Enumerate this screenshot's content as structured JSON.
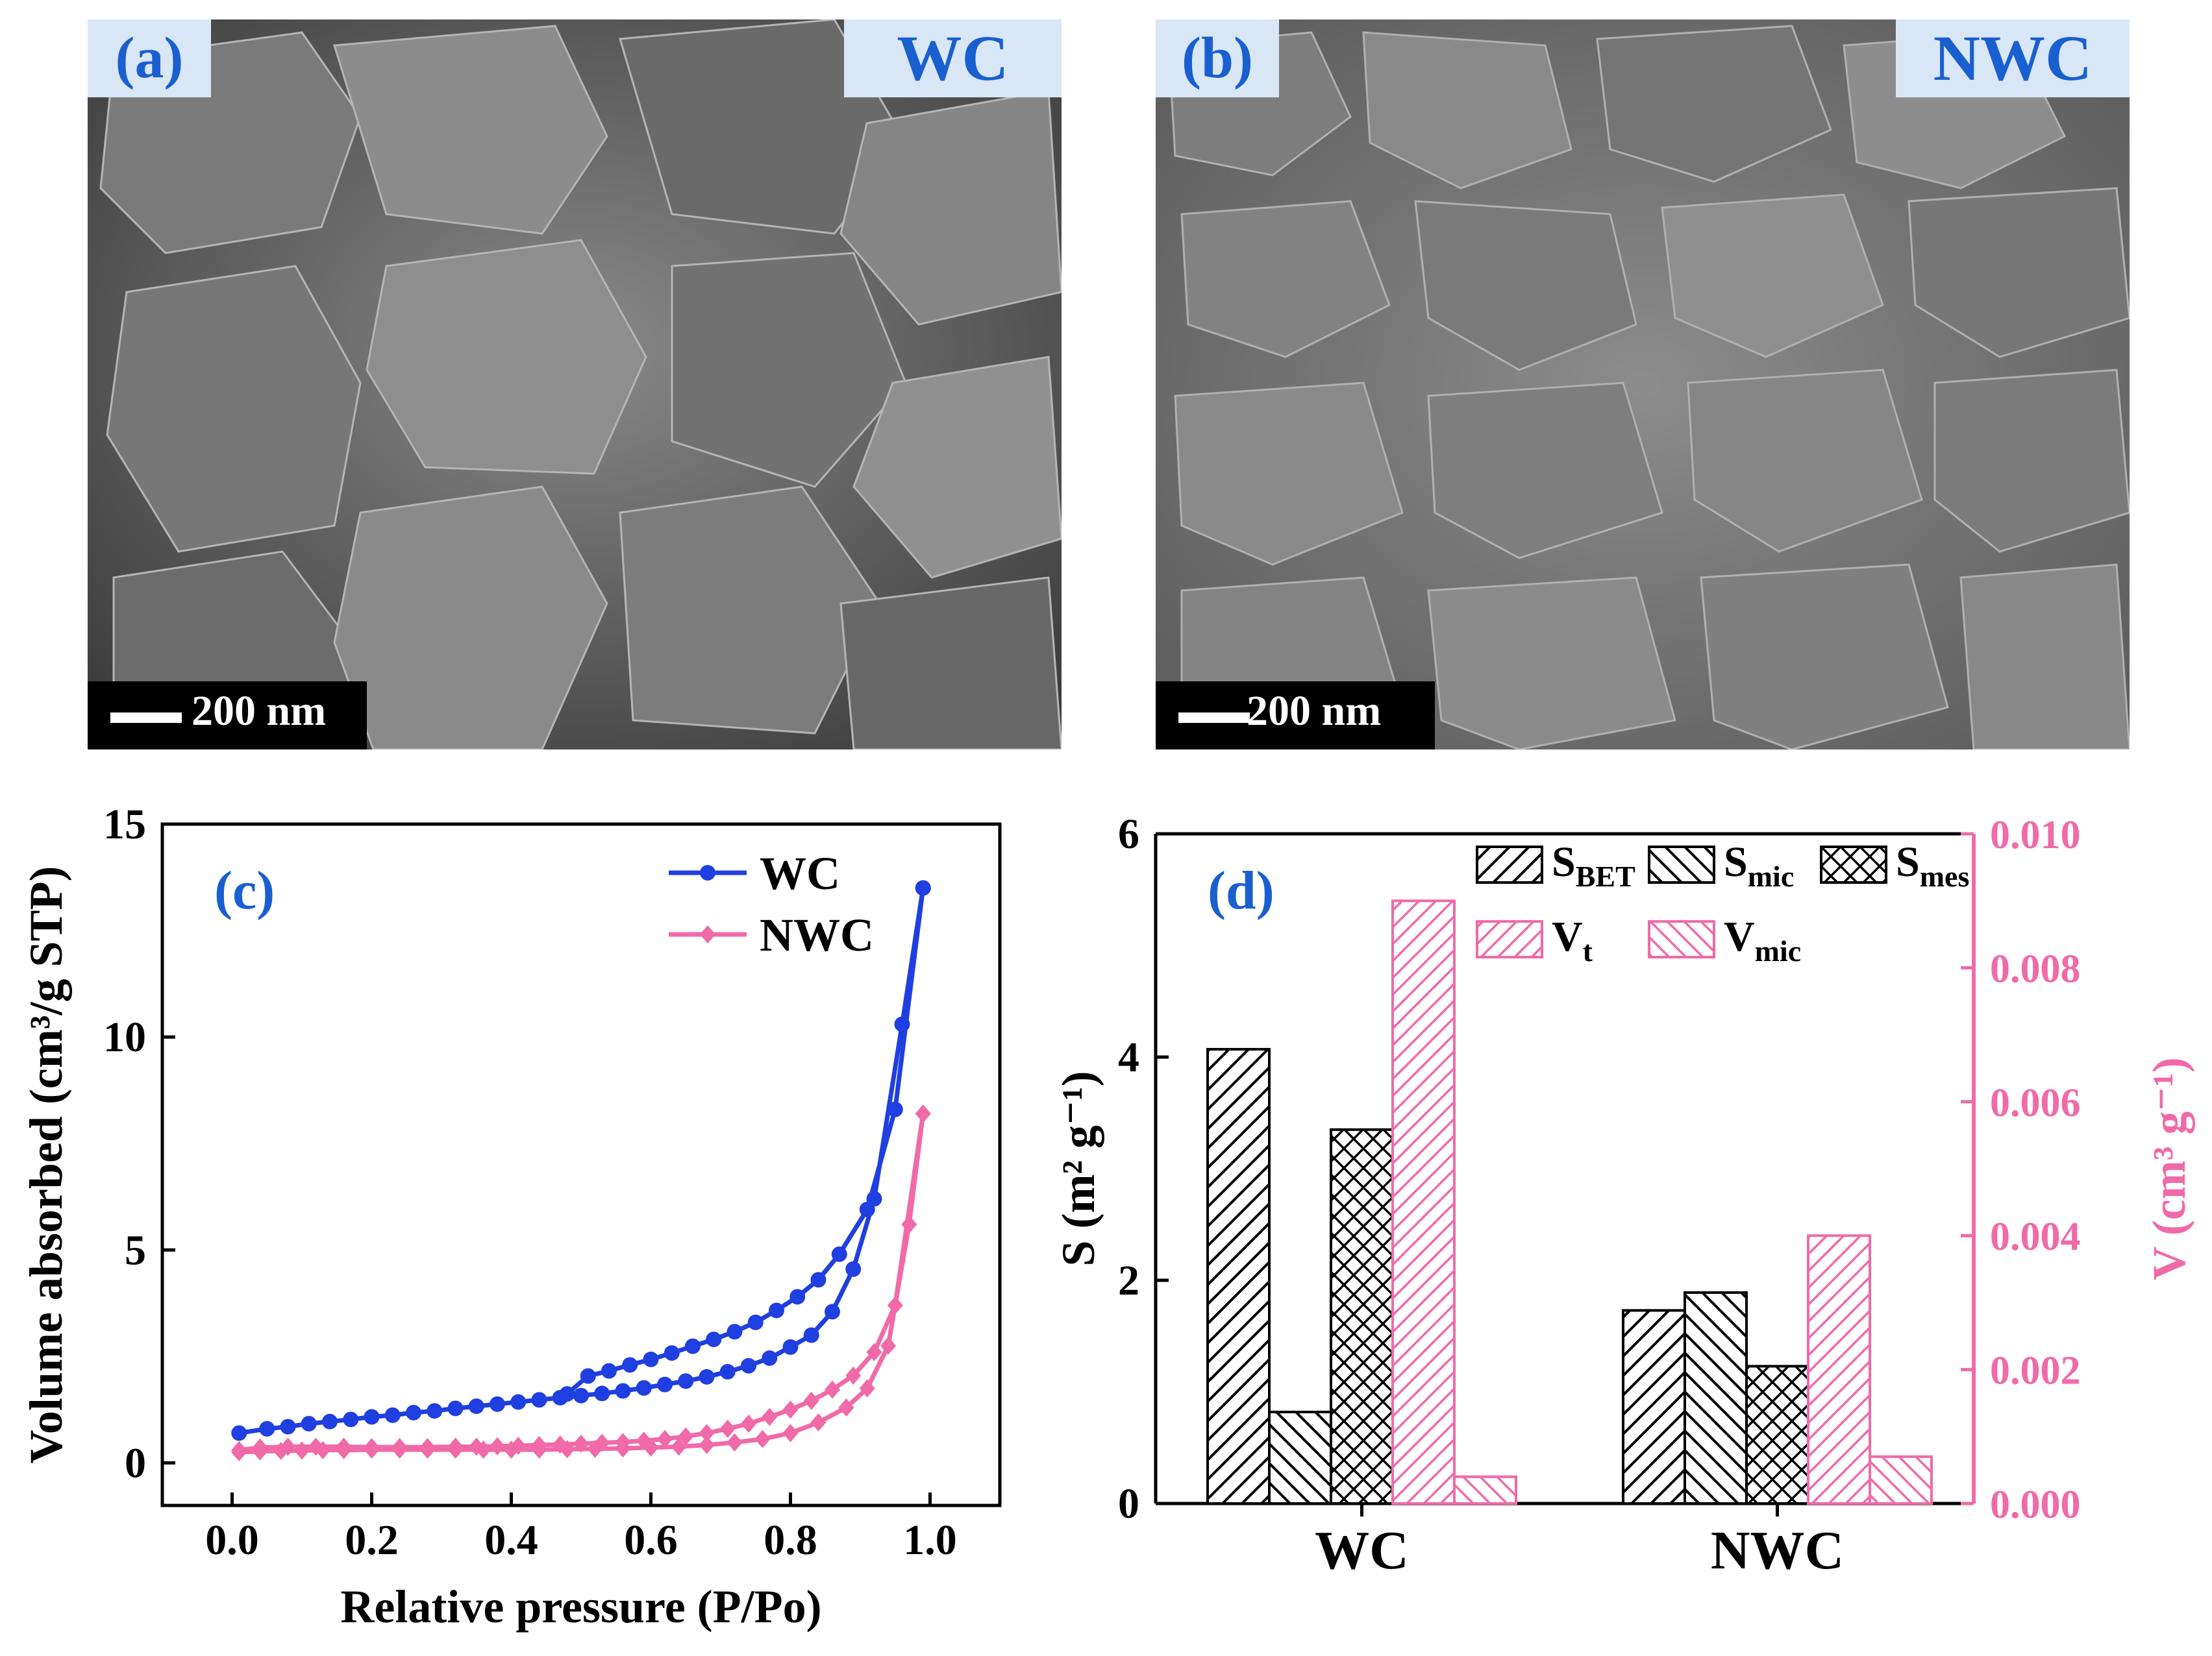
{
  "panels": {
    "a": {
      "letter": "(a)",
      "sample": "WC",
      "scale": "200 nm"
    },
    "b": {
      "letter": "(b)",
      "sample": "NWC",
      "scale": "200 nm"
    }
  },
  "colors": {
    "blue": "#1f3fe0",
    "pink": "#f06aa8",
    "tag_text": "#1a5fd0",
    "tag_bg": "#d9e6f5"
  },
  "chart_data": [
    {
      "panel": "(c)",
      "type": "line",
      "xlabel": "Relative pressure (P/Po)",
      "ylabel": "Volume absorbed (cm³/g STP)",
      "xlim": [
        -0.1,
        1.1
      ],
      "ylim": [
        -1,
        15
      ],
      "xticks": [
        "0.0",
        "0.2",
        "0.4",
        "0.6",
        "0.8",
        "1.0"
      ],
      "yticks": [
        "0",
        "5",
        "10",
        "15"
      ],
      "legend_position": "top-right",
      "series": [
        {
          "name": "WC",
          "color": "#1f3fe0",
          "marker": "circle",
          "adsorption": {
            "x": [
              0.01,
              0.05,
              0.08,
              0.11,
              0.14,
              0.17,
              0.2,
              0.23,
              0.26,
              0.29,
              0.32,
              0.35,
              0.38,
              0.41,
              0.44,
              0.47,
              0.5,
              0.53,
              0.56,
              0.59,
              0.62,
              0.65,
              0.68,
              0.71,
              0.74,
              0.77,
              0.8,
              0.83,
              0.86,
              0.89,
              0.92,
              0.96,
              0.99
            ],
            "y": [
              0.7,
              0.8,
              0.85,
              0.92,
              0.97,
              1.02,
              1.08,
              1.12,
              1.18,
              1.22,
              1.28,
              1.33,
              1.38,
              1.43,
              1.48,
              1.53,
              1.58,
              1.63,
              1.69,
              1.76,
              1.84,
              1.92,
              2.02,
              2.14,
              2.28,
              2.46,
              2.72,
              3.0,
              3.55,
              4.55,
              6.2,
              10.3,
              13.5
            ]
          },
          "desorption": {
            "x": [
              0.99,
              0.95,
              0.91,
              0.87,
              0.84,
              0.81,
              0.78,
              0.75,
              0.72,
              0.69,
              0.66,
              0.63,
              0.6,
              0.57,
              0.54,
              0.51,
              0.48
            ],
            "y": [
              13.5,
              8.3,
              5.95,
              4.9,
              4.3,
              3.9,
              3.58,
              3.3,
              3.08,
              2.9,
              2.74,
              2.58,
              2.43,
              2.3,
              2.16,
              2.04,
              1.62
            ]
          }
        },
        {
          "name": "NWC",
          "color": "#f06aa8",
          "marker": "diamond",
          "adsorption": {
            "x": [
              0.01,
              0.04,
              0.07,
              0.1,
              0.13,
              0.16,
              0.2,
              0.24,
              0.28,
              0.32,
              0.36,
              0.4,
              0.44,
              0.48,
              0.52,
              0.56,
              0.6,
              0.64,
              0.68,
              0.72,
              0.76,
              0.8,
              0.84,
              0.88,
              0.91,
              0.94,
              0.97,
              0.99
            ],
            "y": [
              0.25,
              0.27,
              0.28,
              0.29,
              0.3,
              0.3,
              0.31,
              0.31,
              0.31,
              0.31,
              0.31,
              0.31,
              0.31,
              0.32,
              0.33,
              0.34,
              0.36,
              0.38,
              0.42,
              0.48,
              0.56,
              0.7,
              0.95,
              1.3,
              1.75,
              2.75,
              5.6,
              8.2
            ]
          },
          "desorption": {
            "x": [
              0.99,
              0.95,
              0.92,
              0.89,
              0.86,
              0.83,
              0.8,
              0.77,
              0.74,
              0.71,
              0.68,
              0.65,
              0.62,
              0.59,
              0.56,
              0.53,
              0.5,
              0.47,
              0.44,
              0.41,
              0.38,
              0.35,
              0.32,
              0.28,
              0.24,
              0.2,
              0.16,
              0.12,
              0.08,
              0.04,
              0.01
            ],
            "y": [
              8.2,
              3.7,
              2.6,
              2.05,
              1.72,
              1.46,
              1.25,
              1.08,
              0.92,
              0.8,
              0.7,
              0.62,
              0.56,
              0.52,
              0.49,
              0.47,
              0.45,
              0.43,
              0.42,
              0.4,
              0.39,
              0.38,
              0.38,
              0.37,
              0.37,
              0.37,
              0.38,
              0.38,
              0.38,
              0.36,
              0.3
            ]
          }
        }
      ]
    },
    {
      "panel": "(d)",
      "type": "bar",
      "categories": [
        "WC",
        "NWC"
      ],
      "ylabel_left": "S (m² g⁻¹)",
      "ylabel_right": "V (cm³ g⁻¹)",
      "ylim_left": [
        0,
        6
      ],
      "ylim_right": [
        0,
        0.01
      ],
      "yticks_left": [
        "0",
        "2",
        "4",
        "6"
      ],
      "yticks_right": [
        "0.000",
        "0.002",
        "0.004",
        "0.006",
        "0.008",
        "0.010"
      ],
      "legend_position": "top",
      "series": [
        {
          "name": "S_BET",
          "label": "S",
          "sub": "BET",
          "axis": "left",
          "pattern": "hatch-forward",
          "color": "#000000",
          "values": [
            4.07,
            1.73
          ]
        },
        {
          "name": "S_mic",
          "label": "S",
          "sub": "mic",
          "axis": "left",
          "pattern": "hatch-backward",
          "color": "#000000",
          "values": [
            0.82,
            1.89
          ]
        },
        {
          "name": "S_mes",
          "label": "S",
          "sub": "mes",
          "axis": "left",
          "pattern": "crosshatch",
          "color": "#000000",
          "values": [
            3.35,
            1.23
          ]
        },
        {
          "name": "V_t",
          "label": "V",
          "sub": "t",
          "axis": "right",
          "pattern": "hatch-forward",
          "color": "#f06aa8",
          "values": [
            0.009,
            0.004
          ]
        },
        {
          "name": "V_mic",
          "label": "V",
          "sub": "mic",
          "axis": "right",
          "pattern": "hatch-backward",
          "color": "#f06aa8",
          "values": [
            0.0004,
            0.0007
          ]
        }
      ]
    }
  ]
}
